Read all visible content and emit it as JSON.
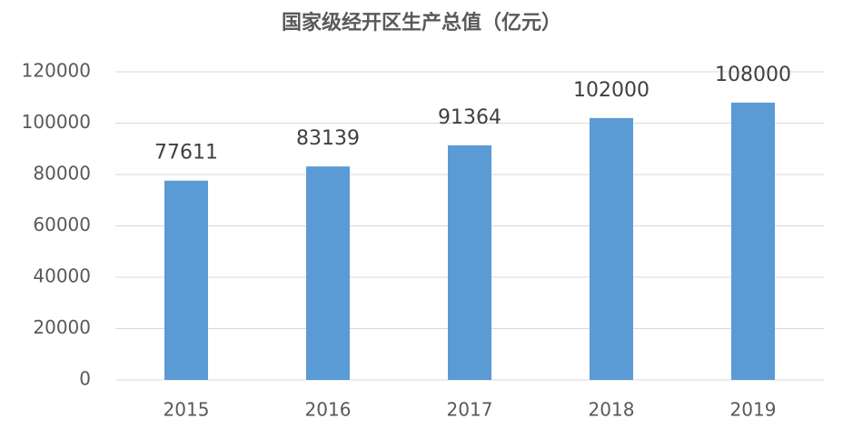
{
  "chart_data": {
    "type": "bar",
    "title": "国家级经开区生产总值（亿元）",
    "categories": [
      "2015",
      "2016",
      "2017",
      "2018",
      "2019"
    ],
    "values": [
      77611,
      83139,
      91364,
      102000,
      108000
    ],
    "color": "#5b9bd5",
    "ylim": [
      0,
      120000
    ],
    "yticks": [
      0,
      20000,
      40000,
      60000,
      80000,
      100000,
      120000
    ],
    "grid": true
  }
}
